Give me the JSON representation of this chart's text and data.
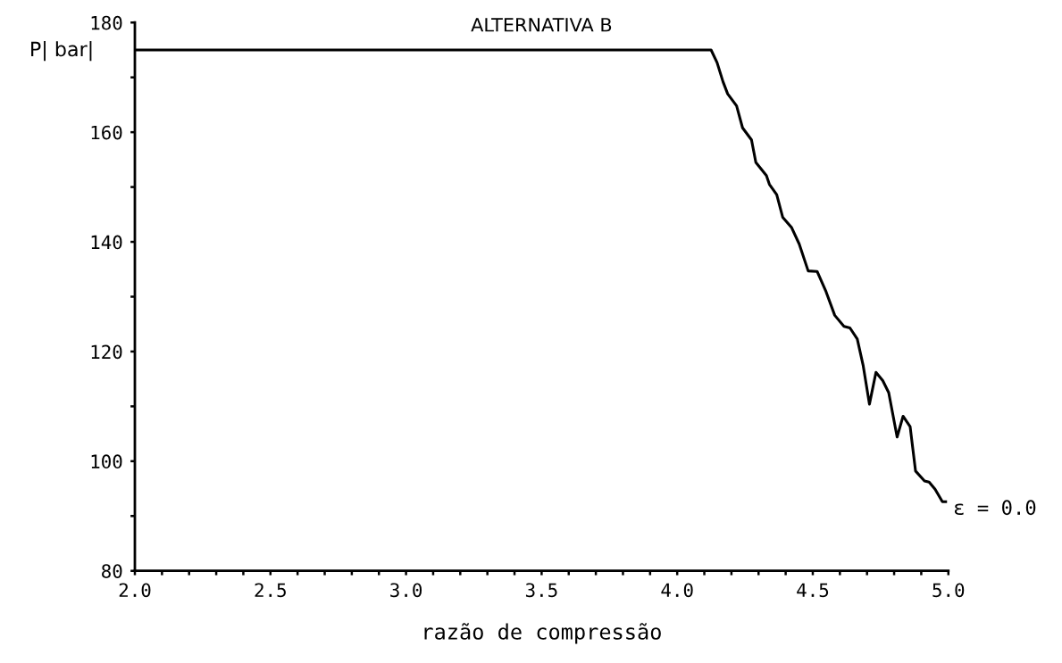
{
  "chart_data": {
    "type": "line",
    "title": "ALTERNATIVA B",
    "xlabel": "razão de compressão",
    "ylabel": "P| bar|",
    "x": [
      2.0,
      4.125,
      4.147,
      4.169,
      4.186,
      4.219,
      4.241,
      4.274,
      4.29,
      4.329,
      4.34,
      4.367,
      4.389,
      4.422,
      4.45,
      4.483,
      4.516,
      4.549,
      4.581,
      4.615,
      4.637,
      4.664,
      4.686,
      4.709,
      4.733,
      4.758,
      4.78,
      4.811,
      4.833,
      4.859,
      4.879,
      4.912,
      4.929,
      4.951,
      4.978,
      4.99
    ],
    "series": [
      {
        "color": "#000000",
        "values": [
          175,
          175,
          172.7,
          169.2,
          167,
          164.8,
          160.8,
          158.6,
          154.5,
          152.1,
          150.5,
          148.6,
          144.5,
          142.6,
          139.6,
          134.7,
          134.6,
          130.9,
          126.6,
          124.6,
          124.3,
          122.3,
          117.4,
          110.4,
          116.2,
          114.7,
          112.5,
          104.4,
          108.2,
          106.3,
          98.2,
          96.4,
          96.2,
          94.9,
          92.6,
          92.6
        ]
      }
    ],
    "xlim": [
      2.0,
      5.0
    ],
    "ylim": [
      80,
      180
    ],
    "xticks": [
      {
        "value": 2.0,
        "label": "2.0"
      },
      {
        "value": 2.1,
        "label": null
      },
      {
        "value": 2.2,
        "label": null
      },
      {
        "value": 2.3,
        "label": null
      },
      {
        "value": 2.4,
        "label": null
      },
      2.5,
      {
        "value": 2.6,
        "label": null
      },
      {
        "value": 2.7,
        "label": null
      },
      {
        "value": 2.8,
        "label": null
      },
      {
        "value": 2.9,
        "label": null
      },
      {
        "value": 3.0,
        "label": "3.0"
      },
      {
        "value": 3.1,
        "label": null
      },
      {
        "value": 3.2,
        "label": null
      },
      {
        "value": 3.3,
        "label": null
      },
      {
        "value": 3.4,
        "label": null
      },
      3.5,
      {
        "value": 3.6,
        "label": null
      },
      {
        "value": 3.7,
        "label": null
      },
      {
        "value": 3.8,
        "label": null
      },
      {
        "value": 3.9,
        "label": null
      },
      {
        "value": 4.0,
        "label": "4.0"
      },
      {
        "value": 4.1,
        "label": null
      },
      {
        "value": 4.2,
        "label": null
      },
      {
        "value": 4.3,
        "label": null
      },
      {
        "value": 4.4,
        "label": null
      },
      4.5,
      {
        "value": 4.6,
        "label": null
      },
      {
        "value": 4.7,
        "label": null
      },
      {
        "value": 4.8,
        "label": null
      },
      {
        "value": 4.9,
        "label": null
      },
      {
        "value": 5.0,
        "label": "5.0"
      }
    ],
    "yticks": [
      80,
      {
        "value": 90,
        "label": null
      },
      100,
      {
        "value": 110,
        "label": null
      },
      120,
      {
        "value": 130,
        "label": null
      },
      140,
      {
        "value": 150,
        "label": null
      },
      160,
      {
        "value": 170,
        "label": null
      },
      180
    ],
    "annotations": [
      {
        "text": "ε = 0.0",
        "x": 4.99,
        "y": 92.6
      }
    ],
    "grid": false,
    "marker": "none",
    "line_style": "solid"
  }
}
